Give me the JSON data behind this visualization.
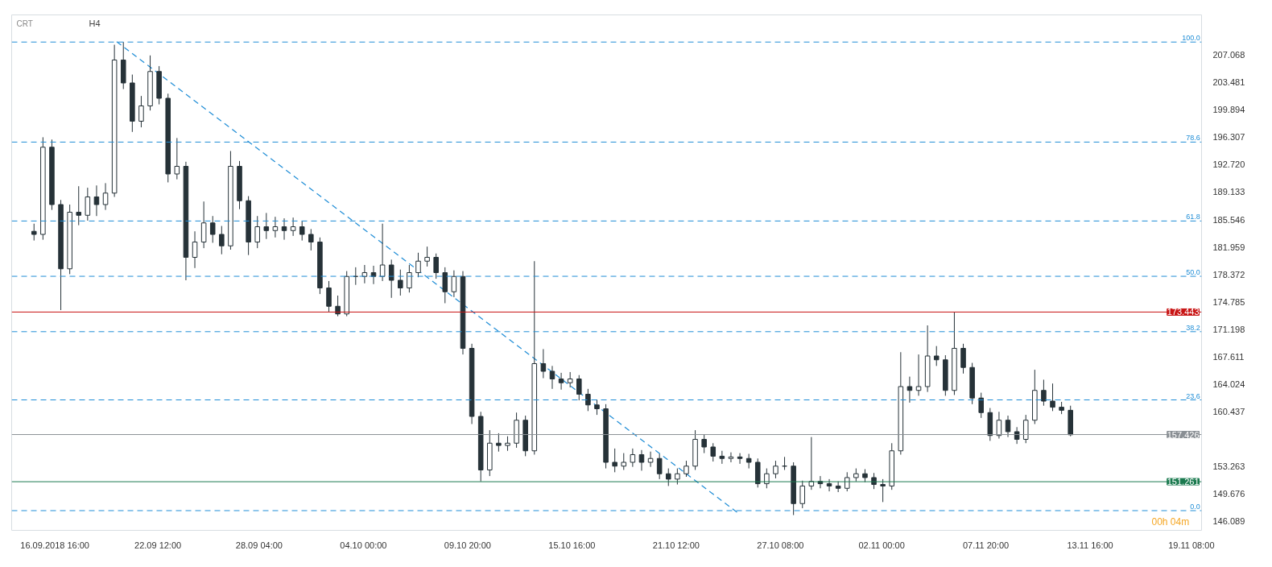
{
  "chart_data": {
    "type": "candlestick",
    "annotations": [
      "CRT",
      "H4",
      "00h 04m",
      {
        "text": "100.0",
        "x": "2018-11-19T18:00",
        "y": 208.75
      },
      {
        "text": "78.6",
        "x": "2018-11-19T18:00",
        "y": 195.67
      },
      {
        "text": "61.8",
        "x": "2018-11-19T18:00",
        "y": 185.35
      },
      {
        "text": "50.0",
        "x": "2018-11-19T18:00",
        "y": 178.12
      },
      {
        "text": "38.2",
        "x": "2018-11-19T18:00",
        "y": 170.88
      },
      {
        "text": "23.6",
        "x": "2018-11-19T18:00",
        "y": 161.96
      },
      {
        "text": "0.0",
        "x": "2018-11-19T18:00",
        "y": 147.48
      }
    ],
    "x": [
      "2018-09-15T12:00",
      "2018-09-16T00:00",
      "2018-09-16T12:00",
      "2018-09-17T00:00",
      "2018-09-17T12:00",
      "2018-09-18T00:00",
      "2018-09-18T12:00",
      "2018-09-19T00:00",
      "2018-09-19T12:00",
      "2018-09-20T00:00",
      "2018-09-20T12:00",
      "2018-09-21T00:00",
      "2018-09-21T12:00",
      "2018-09-22T00:00",
      "2018-09-22T12:00",
      "2018-09-23T00:00",
      "2018-09-23T12:00",
      "2018-09-24T00:00",
      "2018-09-24T12:00",
      "2018-09-25T00:00",
      "2018-09-25T12:00",
      "2018-09-26T00:00",
      "2018-09-26T12:00",
      "2018-09-27T00:00",
      "2018-09-27T12:00",
      "2018-09-28T00:00",
      "2018-09-28T12:00",
      "2018-09-29T00:00",
      "2018-09-29T12:00",
      "2018-09-30T00:00",
      "2018-09-30T12:00",
      "2018-10-01T00:00",
      "2018-10-01T12:00",
      "2018-10-02T00:00",
      "2018-10-02T12:00",
      "2018-10-03T00:00",
      "2018-10-03T12:00",
      "2018-10-04T00:00",
      "2018-10-04T12:00",
      "2018-10-05T00:00",
      "2018-10-05T12:00",
      "2018-10-06T00:00",
      "2018-10-06T12:00",
      "2018-10-07T00:00",
      "2018-10-07T12:00",
      "2018-10-08T00:00",
      "2018-10-08T12:00",
      "2018-10-09T00:00",
      "2018-10-09T12:00",
      "2018-10-10T00:00",
      "2018-10-10T12:00",
      "2018-10-11T00:00",
      "2018-10-11T12:00",
      "2018-10-12T00:00",
      "2018-10-12T12:00",
      "2018-10-13T00:00",
      "2018-10-13T12:00",
      "2018-10-14T00:00",
      "2018-10-14T12:00",
      "2018-10-15T00:00",
      "2018-10-15T12:00",
      "2018-10-16T00:00",
      "2018-10-16T12:00",
      "2018-10-17T00:00",
      "2018-10-17T12:00",
      "2018-10-18T00:00",
      "2018-10-18T12:00",
      "2018-10-19T00:00",
      "2018-10-19T12:00",
      "2018-10-20T00:00",
      "2018-10-20T12:00",
      "2018-10-21T00:00",
      "2018-10-21T12:00",
      "2018-10-22T00:00",
      "2018-10-22T12:00",
      "2018-10-23T00:00",
      "2018-10-23T12:00",
      "2018-10-24T00:00",
      "2018-10-24T12:00",
      "2018-10-25T00:00",
      "2018-10-25T12:00",
      "2018-10-26T00:00",
      "2018-10-26T12:00",
      "2018-10-27T00:00",
      "2018-10-27T12:00",
      "2018-10-28T00:00",
      "2018-10-28T12:00",
      "2018-10-29T00:00",
      "2018-10-29T12:00",
      "2018-10-30T00:00",
      "2018-10-30T12:00",
      "2018-10-31T00:00",
      "2018-10-31T12:00",
      "2018-11-01T00:00",
      "2018-11-01T12:00",
      "2018-11-02T00:00",
      "2018-11-02T12:00",
      "2018-11-03T00:00",
      "2018-11-03T12:00",
      "2018-11-04T00:00",
      "2018-11-04T12:00",
      "2018-11-05T00:00",
      "2018-11-05T12:00",
      "2018-11-06T00:00",
      "2018-11-06T12:00",
      "2018-11-07T00:00",
      "2018-11-07T12:00",
      "2018-11-08T00:00",
      "2018-11-08T12:00",
      "2018-11-09T00:00",
      "2018-11-09T12:00",
      "2018-11-10T00:00",
      "2018-11-10T12:00",
      "2018-11-11T00:00",
      "2018-11-11T12:00",
      "2018-11-12T00:00",
      "2018-11-12T12:00"
    ],
    "ohlc": [
      [
        184.0,
        185.0,
        182.8,
        183.6
      ],
      [
        183.6,
        196.3,
        182.9,
        195.0
      ],
      [
        195.0,
        196.0,
        186.8,
        187.5
      ],
      [
        187.5,
        188.1,
        173.7,
        179.1
      ],
      [
        179.1,
        187.5,
        178.4,
        186.5
      ],
      [
        186.5,
        189.9,
        184.8,
        186.1
      ],
      [
        186.1,
        189.7,
        185.4,
        188.5
      ],
      [
        188.5,
        190.0,
        186.0,
        187.5
      ],
      [
        187.5,
        190.3,
        186.8,
        189.0
      ],
      [
        189.0,
        208.4,
        188.5,
        206.4
      ],
      [
        206.4,
        208.75,
        202.6,
        203.4
      ],
      [
        203.4,
        204.5,
        197.0,
        198.4
      ],
      [
        198.4,
        201.7,
        197.6,
        200.4
      ],
      [
        200.4,
        207.0,
        199.8,
        204.9
      ],
      [
        204.9,
        205.6,
        200.6,
        201.4
      ],
      [
        201.4,
        202.0,
        190.4,
        191.5
      ],
      [
        191.5,
        196.2,
        190.8,
        192.5
      ],
      [
        192.5,
        193.1,
        177.6,
        180.6
      ],
      [
        180.6,
        184.0,
        179.2,
        182.6
      ],
      [
        182.6,
        187.9,
        181.8,
        185.1
      ],
      [
        185.1,
        186.0,
        182.5,
        183.6
      ],
      [
        183.6,
        184.7,
        181.0,
        182.1
      ],
      [
        182.1,
        194.5,
        181.6,
        192.5
      ],
      [
        192.5,
        193.2,
        186.9,
        188.0
      ],
      [
        188.0,
        188.6,
        180.9,
        182.6
      ],
      [
        182.6,
        186.0,
        181.8,
        184.6
      ],
      [
        184.6,
        186.4,
        183.0,
        184.1
      ],
      [
        184.1,
        185.9,
        183.2,
        184.6
      ],
      [
        184.6,
        185.7,
        182.9,
        184.1
      ],
      [
        184.1,
        185.8,
        183.4,
        184.6
      ],
      [
        184.6,
        185.3,
        182.8,
        183.6
      ],
      [
        183.6,
        184.3,
        181.5,
        182.6
      ],
      [
        182.6,
        183.2,
        175.8,
        176.6
      ],
      [
        176.6,
        177.5,
        173.5,
        174.2
      ],
      [
        174.2,
        175.6,
        172.9,
        173.2
      ],
      [
        173.2,
        178.8,
        172.9,
        178.1
      ],
      [
        178.1,
        179.3,
        177.0,
        178.1
      ],
      [
        178.1,
        179.6,
        177.2,
        178.6
      ],
      [
        178.6,
        179.5,
        177.1,
        178.1
      ],
      [
        178.1,
        185.0,
        177.5,
        179.6
      ],
      [
        179.6,
        180.3,
        175.3,
        177.6
      ],
      [
        177.6,
        179.0,
        175.6,
        176.6
      ],
      [
        176.6,
        179.6,
        176.0,
        178.6
      ],
      [
        178.6,
        181.2,
        178.0,
        180.1
      ],
      [
        180.1,
        182.0,
        179.4,
        180.6
      ],
      [
        180.6,
        181.1,
        177.8,
        178.6
      ],
      [
        178.6,
        179.3,
        174.6,
        176.1
      ],
      [
        176.1,
        178.9,
        175.4,
        178.1
      ],
      [
        178.1,
        178.8,
        167.9,
        168.7
      ],
      [
        168.7,
        169.3,
        158.8,
        159.8
      ],
      [
        159.8,
        160.4,
        151.3,
        152.8
      ],
      [
        152.8,
        158.0,
        152.0,
        156.3
      ],
      [
        156.3,
        157.6,
        155.2,
        156.0
      ],
      [
        156.0,
        157.2,
        155.3,
        156.3
      ],
      [
        156.3,
        160.3,
        155.7,
        159.3
      ],
      [
        159.3,
        159.9,
        154.6,
        155.3
      ],
      [
        155.3,
        180.1,
        154.8,
        166.7
      ],
      [
        166.7,
        168.6,
        164.8,
        165.7
      ],
      [
        165.7,
        166.4,
        163.4,
        164.7
      ],
      [
        164.7,
        165.5,
        163.3,
        164.2
      ],
      [
        164.2,
        165.6,
        163.6,
        164.7
      ],
      [
        164.7,
        165.2,
        161.9,
        162.7
      ],
      [
        162.7,
        163.4,
        160.5,
        161.3
      ],
      [
        161.3,
        162.0,
        160.0,
        160.8
      ],
      [
        160.8,
        161.4,
        153.0,
        153.8
      ],
      [
        153.8,
        155.6,
        152.5,
        153.3
      ],
      [
        153.3,
        155.0,
        152.8,
        153.8
      ],
      [
        153.8,
        155.6,
        153.2,
        154.8
      ],
      [
        154.8,
        155.4,
        152.7,
        153.8
      ],
      [
        153.8,
        155.2,
        153.2,
        154.3
      ],
      [
        154.3,
        154.9,
        151.6,
        152.3
      ],
      [
        152.3,
        153.0,
        150.7,
        151.6
      ],
      [
        151.6,
        153.0,
        150.9,
        152.3
      ],
      [
        152.3,
        154.0,
        151.9,
        153.3
      ],
      [
        153.3,
        158.0,
        152.8,
        156.8
      ],
      [
        156.8,
        157.4,
        155.0,
        155.8
      ],
      [
        155.8,
        156.3,
        153.9,
        154.6
      ],
      [
        154.6,
        155.3,
        153.6,
        154.3
      ],
      [
        154.3,
        155.1,
        153.8,
        154.5
      ],
      [
        154.5,
        155.0,
        153.6,
        154.3
      ],
      [
        154.3,
        154.9,
        153.0,
        153.8
      ],
      [
        153.8,
        154.3,
        150.5,
        151.0
      ],
      [
        151.0,
        153.0,
        150.4,
        152.3
      ],
      [
        152.3,
        154.0,
        151.7,
        153.3
      ],
      [
        153.3,
        154.5,
        152.8,
        153.3
      ],
      [
        153.3,
        153.8,
        146.9,
        148.4
      ],
      [
        148.4,
        151.4,
        147.8,
        150.7
      ],
      [
        150.7,
        157.1,
        150.2,
        151.3
      ],
      [
        151.3,
        152.0,
        150.4,
        151.0
      ],
      [
        151.0,
        151.6,
        150.0,
        150.7
      ],
      [
        150.7,
        151.3,
        149.9,
        150.4
      ],
      [
        150.4,
        152.5,
        150.0,
        151.8
      ],
      [
        151.8,
        153.0,
        151.3,
        152.3
      ],
      [
        152.3,
        152.9,
        151.2,
        151.8
      ],
      [
        151.8,
        152.4,
        150.3,
        150.9
      ],
      [
        150.9,
        151.6,
        148.6,
        150.7
      ],
      [
        150.7,
        156.3,
        150.2,
        155.3
      ],
      [
        155.3,
        168.2,
        154.8,
        163.7
      ],
      [
        163.7,
        165.0,
        161.6,
        163.2
      ],
      [
        163.2,
        167.9,
        162.5,
        163.7
      ],
      [
        163.7,
        171.7,
        163.0,
        167.7
      ],
      [
        167.7,
        169.0,
        166.4,
        167.2
      ],
      [
        167.2,
        167.8,
        162.5,
        163.2
      ],
      [
        163.2,
        173.4,
        162.6,
        168.7
      ],
      [
        168.7,
        169.3,
        165.4,
        166.2
      ],
      [
        166.2,
        166.8,
        161.4,
        162.2
      ],
      [
        162.2,
        162.9,
        159.6,
        160.3
      ],
      [
        160.3,
        160.9,
        156.6,
        157.3
      ],
      [
        157.3,
        160.4,
        156.9,
        159.3
      ],
      [
        159.3,
        159.9,
        157.1,
        157.8
      ],
      [
        157.8,
        158.4,
        156.2,
        156.8
      ],
      [
        156.8,
        160.0,
        156.3,
        159.3
      ],
      [
        159.3,
        165.9,
        158.8,
        163.2
      ],
      [
        163.2,
        164.6,
        161.2,
        161.8
      ],
      [
        161.8,
        164.1,
        160.5,
        161.0
      ],
      [
        161.0,
        161.7,
        160.1,
        160.6
      ],
      [
        160.6,
        161.2,
        157.2,
        157.4
      ]
    ],
    "series": [
      {
        "type": "line",
        "x": [
          "2018-09-20T03:00",
          "2018-10-24T21:00"
        ],
        "values": [
          208.8,
          147.2
        ],
        "color": "#1f8dd6",
        "line_style": "dashed"
      }
    ],
    "ref_lines": [
      {
        "axis": "y",
        "value": 208.75,
        "color": "#1f8dd6",
        "line_style": "dashed"
      },
      {
        "axis": "y",
        "value": 195.67,
        "color": "#1f8dd6",
        "line_style": "dashed"
      },
      {
        "axis": "y",
        "value": 185.35,
        "color": "#1f8dd6",
        "line_style": "dashed"
      },
      {
        "axis": "y",
        "value": 178.12,
        "color": "#1f8dd6",
        "line_style": "dashed"
      },
      {
        "axis": "y",
        "value": 170.88,
        "color": "#1f8dd6",
        "line_style": "dashed"
      },
      {
        "axis": "y",
        "value": 161.96,
        "color": "#1f8dd6",
        "line_style": "dashed"
      },
      {
        "axis": "y",
        "value": 147.48,
        "color": "#1f8dd6",
        "line_style": "dashed"
      },
      {
        "axis": "y",
        "value": 173.443,
        "label": "173.443",
        "color": "#c81414",
        "line_style": "solid"
      },
      {
        "axis": "y",
        "value": 157.426,
        "label": "157.426",
        "color": "#8a8f94",
        "line_style": "solid"
      },
      {
        "axis": "y",
        "value": 151.261,
        "label": "151.261",
        "color": "#1b7a4f",
        "line_style": "solid"
      }
    ],
    "ylim": [
      144.9,
      212.3
    ],
    "yticks": [
      {
        "value": 146.089,
        "label": "146.089"
      },
      {
        "value": 149.676,
        "label": "149.676"
      },
      {
        "value": 153.263,
        "label": "153.263"
      },
      {
        "value": 160.437,
        "label": "160.437"
      },
      {
        "value": 164.024,
        "label": "164.024"
      },
      {
        "value": 167.611,
        "label": "167.611"
      },
      {
        "value": 171.198,
        "label": "171.198"
      },
      {
        "value": 174.785,
        "label": "174.785"
      },
      {
        "value": 178.372,
        "label": "178.372"
      },
      {
        "value": 181.959,
        "label": "181.959"
      },
      {
        "value": 185.546,
        "label": "185.546"
      },
      {
        "value": 189.133,
        "label": "189.133"
      },
      {
        "value": 192.72,
        "label": "192.720"
      },
      {
        "value": 196.307,
        "label": "196.307"
      },
      {
        "value": 199.894,
        "label": "199.894"
      },
      {
        "value": 203.481,
        "label": "203.481"
      },
      {
        "value": 207.068,
        "label": "207.068"
      }
    ],
    "xlim": [
      "2018-09-14T06:00",
      "2018-11-19T20:00"
    ],
    "xticks": [
      {
        "value": "2018-09-16T16:00",
        "label": "16.09.2018 16:00"
      },
      {
        "value": "2018-09-22T12:00",
        "label": "22.09  12:00"
      },
      {
        "value": "2018-09-28T04:00",
        "label": "28.09  04:00"
      },
      {
        "value": "2018-10-04T00:00",
        "label": "04.10  00:00"
      },
      {
        "value": "2018-10-09T20:00",
        "label": "09.10  20:00"
      },
      {
        "value": "2018-10-15T16:00",
        "label": "15.10  16:00"
      },
      {
        "value": "2018-10-21T12:00",
        "label": "21.10  12:00"
      },
      {
        "value": "2018-10-27T08:00",
        "label": "27.10  08:00"
      },
      {
        "value": "2018-11-02T00:00",
        "label": "02.11  00:00"
      },
      {
        "value": "2018-11-07T20:00",
        "label": "07.11  20:00"
      },
      {
        "value": "2018-11-13T16:00",
        "label": "13.11  16:00"
      },
      {
        "value": "2018-11-19T08:00",
        "label": "19.11  08:00"
      }
    ],
    "grid": false
  }
}
